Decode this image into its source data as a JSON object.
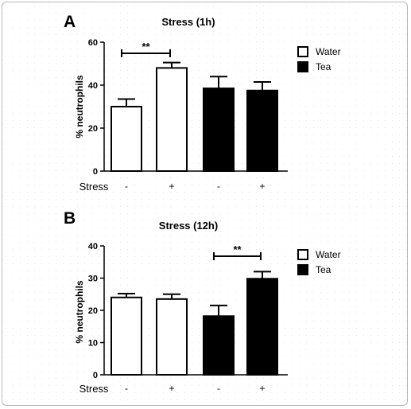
{
  "chart_data": [
    {
      "type": "bar",
      "panel": "A",
      "title": "Stress (1h)",
      "ylabel": "% neutrophils",
      "ylim": [
        0,
        60
      ],
      "yticks": [
        "0",
        "20",
        "40",
        "60"
      ],
      "x_row_label": "Stress",
      "categories": [
        "-",
        "+",
        "-",
        "+"
      ],
      "values": [
        30,
        48,
        38.5,
        37.5
      ],
      "errors": [
        3.5,
        2.5,
        5.5,
        4
      ],
      "groups": [
        "Water",
        "Water",
        "Tea",
        "Tea"
      ],
      "significance": {
        "from": 0,
        "to": 1,
        "label": "**"
      },
      "legend": [
        {
          "name": "Water",
          "color": "#ffffff"
        },
        {
          "name": "Tea",
          "color": "#000000"
        }
      ]
    },
    {
      "type": "bar",
      "panel": "B",
      "title": "Stress (12h)",
      "ylabel": "% neutrophils",
      "ylim": [
        0,
        40
      ],
      "yticks": [
        "0",
        "10",
        "20",
        "30",
        "40"
      ],
      "x_row_label": "Stress",
      "categories": [
        "-",
        "+",
        "-",
        "+"
      ],
      "values": [
        24,
        23.5,
        18.2,
        29.8
      ],
      "errors": [
        1.2,
        1.5,
        3.3,
        2.2
      ],
      "groups": [
        "Water",
        "Water",
        "Tea",
        "Tea"
      ],
      "significance": {
        "from": 2,
        "to": 3,
        "label": "**"
      },
      "legend": [
        {
          "name": "Water",
          "color": "#ffffff"
        },
        {
          "name": "Tea",
          "color": "#000000"
        }
      ]
    }
  ]
}
